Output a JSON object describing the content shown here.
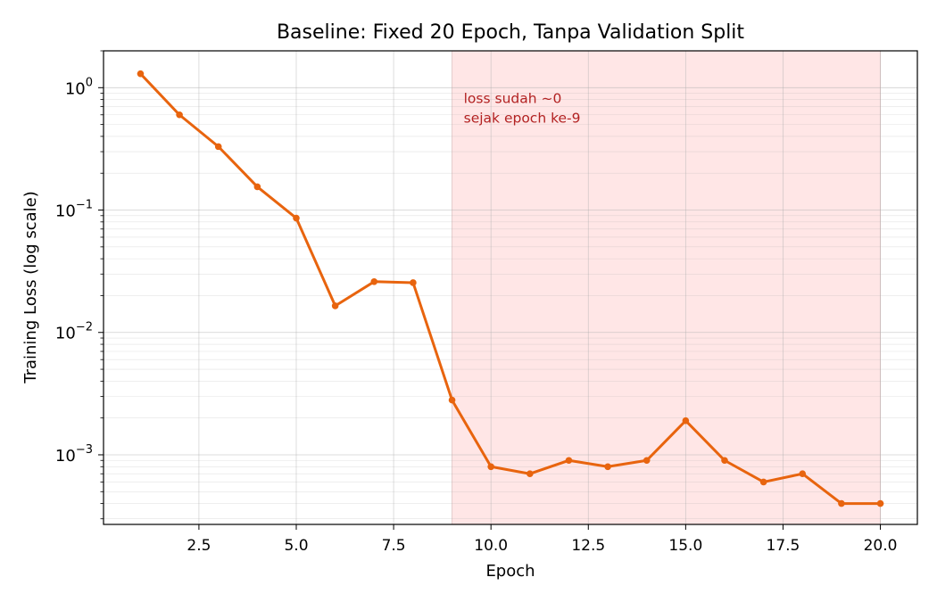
{
  "chart_data": {
    "type": "line",
    "title": "Baseline: Fixed 20 Epoch, Tanpa Validation Split",
    "xlabel": "Epoch",
    "ylabel": "Training Loss (log scale)",
    "yscale": "log",
    "xlim": [
      0.05,
      20.95
    ],
    "ylim": [
      0.00027,
      2.0
    ],
    "x_ticks": [
      2.5,
      5.0,
      7.5,
      10.0,
      12.5,
      15.0,
      17.5,
      20.0
    ],
    "x_tick_labels": [
      "2.5",
      "5.0",
      "7.5",
      "10.0",
      "12.5",
      "15.0",
      "17.5",
      "20.0"
    ],
    "y_ticks": [
      {
        "value": 1,
        "base": "10",
        "exp": "0"
      },
      {
        "value": 0.1,
        "base": "10",
        "exp": "−1"
      },
      {
        "value": 0.01,
        "base": "10",
        "exp": "−2"
      },
      {
        "value": 0.001,
        "base": "10",
        "exp": "−3"
      }
    ],
    "grid": true,
    "series": [
      {
        "color": "#e8640e",
        "x": [
          1,
          2,
          3,
          4,
          5,
          6,
          7,
          8,
          9,
          10,
          11,
          12,
          13,
          14,
          15,
          16,
          17,
          18,
          19,
          20
        ],
        "values": [
          1.3,
          0.6,
          0.33,
          0.155,
          0.086,
          0.0165,
          0.026,
          0.0255,
          0.0028,
          0.0008,
          0.0007,
          0.0009,
          0.0008,
          0.0009,
          0.0019,
          0.0009,
          0.0006,
          0.0007,
          0.0004,
          0.0004
        ]
      }
    ],
    "shaded_region": {
      "x_start": 9,
      "x_end": 20,
      "color": "#ffd6d6"
    },
    "annotation": {
      "lines": [
        "loss sudah ~0",
        "sejak epoch ke-9"
      ],
      "x": 9.3,
      "y": 0.52,
      "color": "#b22222"
    }
  }
}
